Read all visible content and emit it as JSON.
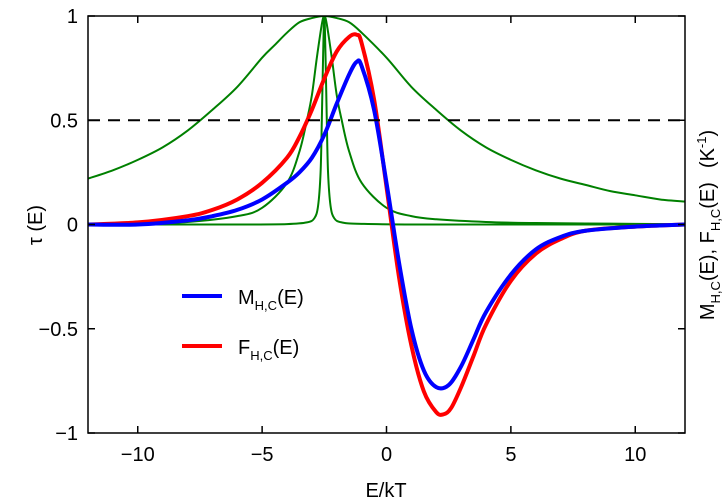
{
  "chart_data": {
    "type": "line",
    "xlabel": "E/kT",
    "ylabel": "τ (E)",
    "right_ylabel": {
      "parts": [
        "M",
        "H,C",
        "(E), F",
        "H,C",
        "(E)",
        "(K",
        "-1",
        ")"
      ]
    },
    "xlim": [
      -12,
      12
    ],
    "ylim": [
      -1,
      1
    ],
    "xticks": [
      -10,
      -5,
      0,
      5,
      10
    ],
    "yticks": [
      -1,
      -0.5,
      0,
      0.5,
      1
    ],
    "xtick_labels": [
      "−10",
      "−5",
      "0",
      "5",
      "10"
    ],
    "ytick_labels": [
      "−1",
      "−0.5",
      "0",
      "0.5",
      "1"
    ],
    "grid": false,
    "legend_position": "lower-left",
    "reference_line": {
      "y": 0.5,
      "style": "dashed",
      "color": "#000000"
    },
    "series": [
      {
        "name": "M(E)",
        "legend": {
          "base": "M",
          "sub": "H,C",
          "suffix": "(E)"
        },
        "color": "#0000ff",
        "width": 4,
        "x": [
          -12,
          -10,
          -8,
          -7,
          -6,
          -5,
          -4,
          -3.5,
          -3,
          -2.5,
          -2,
          -1.5,
          -1.2,
          -1,
          -0.5,
          0,
          0.5,
          1,
          1.5,
          2,
          2.5,
          3,
          3.5,
          4,
          5,
          6,
          7,
          8,
          10,
          12
        ],
        "y": [
          0,
          0,
          0.02,
          0.04,
          0.07,
          0.12,
          0.2,
          0.25,
          0.32,
          0.43,
          0.58,
          0.72,
          0.78,
          0.76,
          0.55,
          0.2,
          -0.18,
          -0.5,
          -0.7,
          -0.78,
          -0.77,
          -0.68,
          -0.55,
          -0.42,
          -0.24,
          -0.12,
          -0.06,
          -0.03,
          -0.01,
          0
        ]
      },
      {
        "name": "F(E)",
        "legend": {
          "base": "F",
          "sub": "H,C",
          "suffix": "(E)"
        },
        "color": "#ff0000",
        "width": 4,
        "x": [
          -12,
          -10,
          -8,
          -7,
          -6,
          -5,
          -4,
          -3.5,
          -3,
          -2.5,
          -2,
          -1.5,
          -1.2,
          -1,
          -0.5,
          0,
          0.5,
          1,
          1.5,
          2,
          2.3,
          2.6,
          3,
          3.5,
          4,
          5,
          6,
          7,
          8,
          10,
          12
        ],
        "y": [
          0,
          0.01,
          0.04,
          0.07,
          0.12,
          0.2,
          0.32,
          0.42,
          0.55,
          0.7,
          0.83,
          0.9,
          0.91,
          0.87,
          0.6,
          0.18,
          -0.25,
          -0.58,
          -0.8,
          -0.9,
          -0.91,
          -0.88,
          -0.78,
          -0.63,
          -0.48,
          -0.27,
          -0.14,
          -0.07,
          -0.03,
          -0.01,
          0
        ]
      },
      {
        "name": "τ wide",
        "color": "#008000",
        "width": 2,
        "x": [
          -12,
          -11,
          -10,
          -9,
          -8,
          -7,
          -6,
          -5,
          -4.5,
          -4,
          -3.5,
          -3,
          -2.5,
          -2,
          -1.5,
          -1,
          0,
          1,
          2,
          3,
          4,
          5,
          6,
          7,
          8,
          9,
          10,
          11,
          12
        ],
        "y": [
          0.22,
          0.26,
          0.31,
          0.37,
          0.45,
          0.55,
          0.66,
          0.8,
          0.86,
          0.92,
          0.97,
          0.99,
          1.0,
          0.99,
          0.97,
          0.92,
          0.8,
          0.66,
          0.55,
          0.45,
          0.37,
          0.31,
          0.26,
          0.22,
          0.19,
          0.16,
          0.14,
          0.12,
          0.11
        ]
      },
      {
        "name": "τ medium",
        "color": "#008000",
        "width": 2,
        "x": [
          -12,
          -10,
          -8,
          -6,
          -5,
          -4,
          -3.5,
          -3.2,
          -3,
          -2.8,
          -2.6,
          -2.5,
          -2.4,
          -2.2,
          -2,
          -1.8,
          -1.5,
          -1,
          0,
          1,
          2,
          4,
          6,
          8,
          10,
          12
        ],
        "y": [
          0.004,
          0.006,
          0.012,
          0.04,
          0.08,
          0.2,
          0.35,
          0.5,
          0.62,
          0.8,
          0.96,
          1.0,
          0.96,
          0.8,
          0.62,
          0.5,
          0.35,
          0.2,
          0.08,
          0.04,
          0.025,
          0.012,
          0.007,
          0.005,
          0.003,
          0.002
        ]
      },
      {
        "name": "τ narrow",
        "color": "#008000",
        "width": 2,
        "x": [
          -12,
          -6,
          -4,
          -3.2,
          -2.9,
          -2.75,
          -2.65,
          -2.6,
          -2.55,
          -2.5,
          -2.45,
          -2.4,
          -2.35,
          -2.25,
          -2.1,
          -1.8,
          -1,
          2,
          12
        ],
        "y": [
          0.0,
          0.0,
          0.002,
          0.01,
          0.03,
          0.09,
          0.25,
          0.5,
          0.8,
          1.0,
          0.8,
          0.5,
          0.25,
          0.09,
          0.03,
          0.01,
          0.003,
          0.0,
          0.0
        ]
      }
    ]
  }
}
